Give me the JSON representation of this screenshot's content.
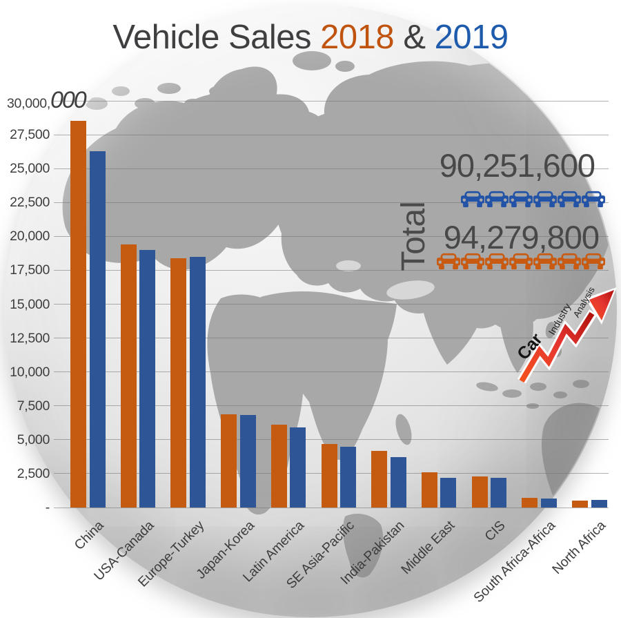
{
  "title": {
    "main": "Vehicle Sales",
    "year_2018": "2018",
    "ampersand": "&",
    "year_2019": "2019"
  },
  "y_axis": {
    "top_main": "30,000,",
    "top_big": "000",
    "ticks": [
      "27,500",
      "25,000",
      "22,500",
      "20,000",
      "17,500",
      "15,000",
      "12,500",
      "10,000",
      "7,500",
      "5,000",
      "2,500",
      "-"
    ]
  },
  "totals": {
    "label": "Total",
    "row_2019": {
      "year": "2019",
      "value": "90,251,600",
      "car_count": 6
    },
    "row_2018": {
      "year": "2018",
      "value": "94,279,800",
      "car_count": 7
    }
  },
  "logo": {
    "line1": "Car",
    "line2": "Industry",
    "line3": "Analysis"
  },
  "colors": {
    "orange_bar": "#c55a11",
    "blue_bar": "#2e5596",
    "title_2018": "#c0540f",
    "title_2019": "#1f5bad",
    "car_blue": "#2353a6",
    "car_orange": "#c95a12",
    "text": "#3f3f3f",
    "grid": "#8f8f8f",
    "land": "#a8a8a8"
  },
  "chart_data": {
    "type": "bar",
    "title": "Vehicle Sales 2018 & 2019",
    "y_unit": "thousand vehicles (axis shown as 30,000,000 max)",
    "categories": [
      "China",
      "USA-Canada",
      "Europe-Turkey",
      "Japan-Korea",
      "Latin America",
      "SE Asia-Pacific",
      "India-Pakistan",
      "Middle East",
      "CIS",
      "South Africa-Africa",
      "North Africa"
    ],
    "series": [
      {
        "name": "2018",
        "color": "#c55a11",
        "values": [
          28500,
          19400,
          18400,
          6900,
          6100,
          4700,
          4200,
          2600,
          2300,
          700,
          500
        ]
      },
      {
        "name": "2019",
        "color": "#2e5596",
        "values": [
          26300,
          19000,
          18500,
          6800,
          5900,
          4500,
          3700,
          2200,
          2200,
          650,
          550
        ]
      }
    ],
    "ylim": [
      0,
      30000
    ],
    "ytick_step": 2500,
    "grid": true,
    "legend_position": "title-colored-years",
    "totals": {
      "2018": "94,279,800",
      "2019": "90,251,600"
    }
  }
}
